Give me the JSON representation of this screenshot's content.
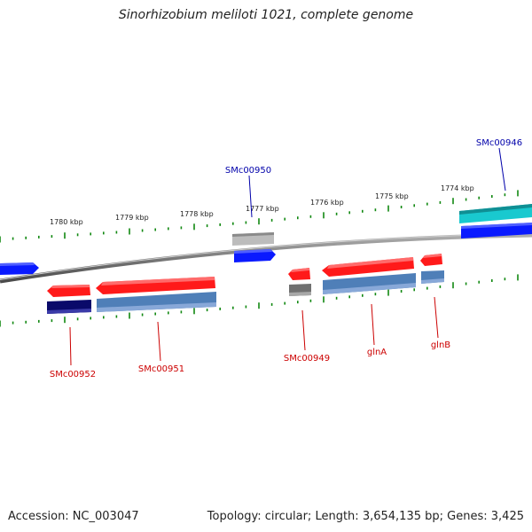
{
  "title": "Sinorhizobium meliloti 1021, complete genome",
  "footer": {
    "accession_label": "Accession:",
    "accession": "NC_003047",
    "topology_label": "Topology:",
    "topology": "circular",
    "length_label": "Length:",
    "length": "3,654,135 bp",
    "genes_label": "Genes:",
    "genes": "3,425"
  },
  "ruler_labels": [
    "1780 kbp",
    "1779 kbp",
    "1778 kbp",
    "1777 kbp",
    "1776 kbp",
    "1775 kbp",
    "1774 kbp"
  ],
  "genes": [
    {
      "name": "SMc00952",
      "color": "#cc0000"
    },
    {
      "name": "SMc00951",
      "color": "#cc0000"
    },
    {
      "name": "SMc00950",
      "color": "#0000aa"
    },
    {
      "name": "SMc00949",
      "color": "#cc0000"
    },
    {
      "name": "glnA",
      "color": "#cc0000"
    },
    {
      "name": "glnB",
      "color": "#cc0000"
    },
    {
      "name": "SMc00946",
      "color": "#0000aa"
    }
  ],
  "colors": {
    "backbone": "#808080",
    "tick": "#118811",
    "gene_red": "#ff1a1a",
    "gene_blue": "#0a1aff",
    "cds_steelblue": "#4f7fb8",
    "cds_navy": "#0a0a6a",
    "cds_gray": "#707070",
    "cds_lightgray": "#bcbcbc",
    "cds_cyan": "#19c9cf",
    "label_red": "#cc0000",
    "label_blue": "#0000aa"
  }
}
